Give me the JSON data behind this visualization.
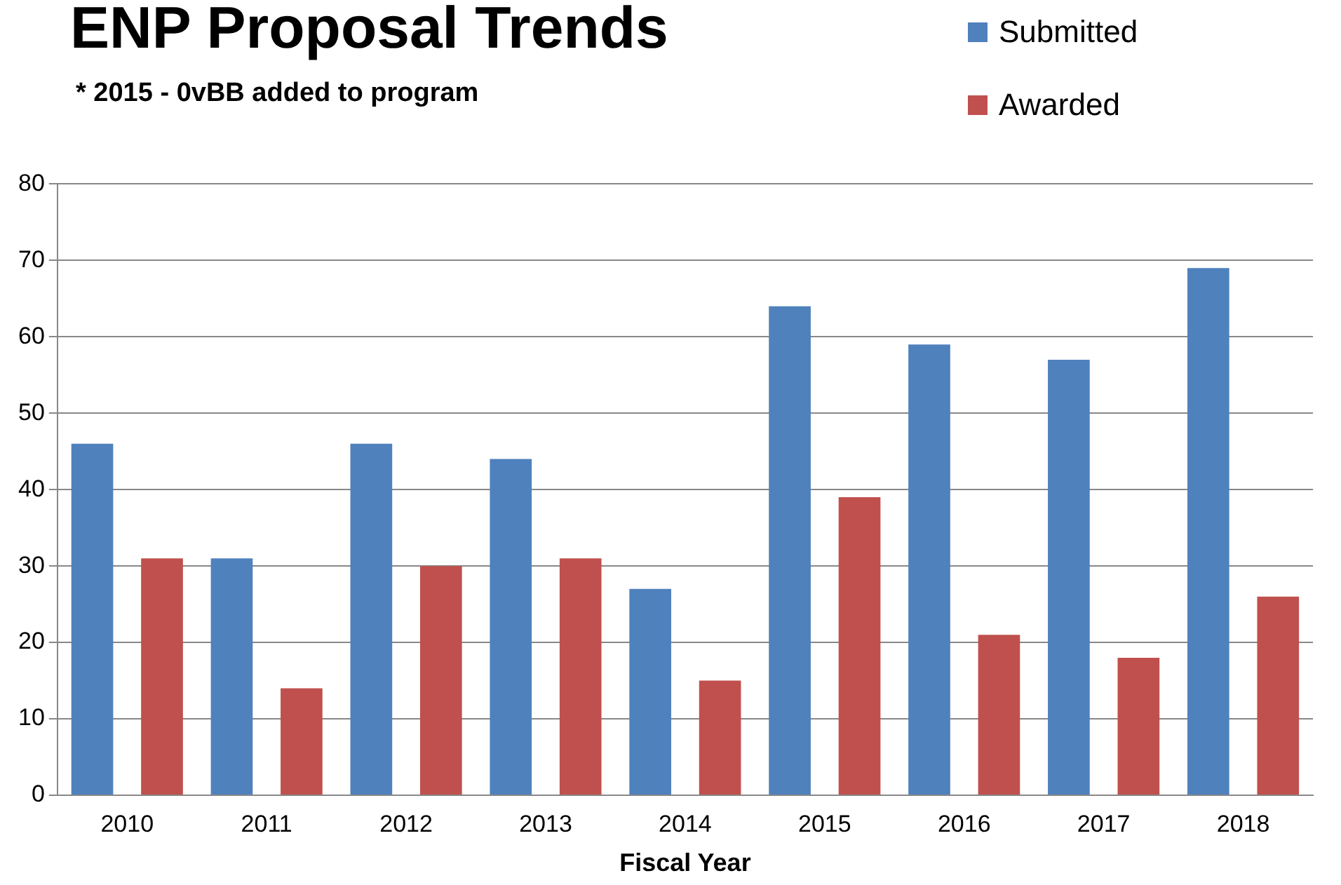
{
  "chart_data": {
    "type": "bar",
    "title": "ENP Proposal Trends",
    "subtitle": "* 2015 - 0vBB added to program",
    "xlabel": "Fiscal Year",
    "categories": [
      "2010",
      "2011",
      "2012",
      "2013",
      "2014",
      "2015",
      "2016",
      "2017",
      "2018"
    ],
    "series": [
      {
        "name": "Submitted",
        "color": "#4f81bd",
        "values": [
          46,
          31,
          46,
          44,
          27,
          64,
          59,
          57,
          69
        ]
      },
      {
        "name": "Awarded",
        "color": "#c0504d",
        "values": [
          31,
          14,
          30,
          31,
          15,
          39,
          21,
          18,
          26
        ]
      }
    ],
    "ylim": [
      0,
      80
    ],
    "yticks": [
      0,
      10,
      20,
      30,
      40,
      50,
      60,
      70,
      80
    ],
    "grid": "y",
    "legend": "top right"
  }
}
